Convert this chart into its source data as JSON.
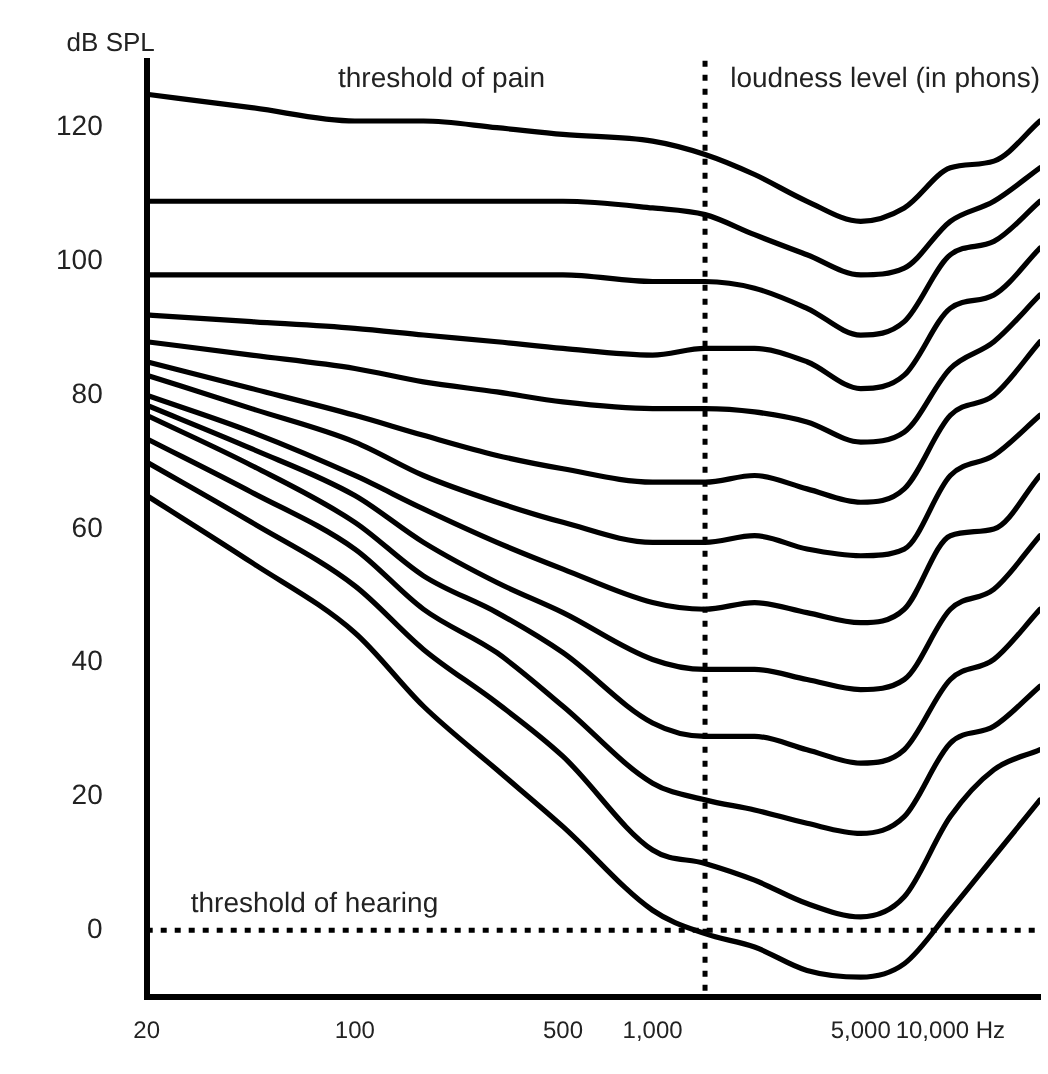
{
  "chart_data": {
    "type": "line",
    "ylabel": "dB SPL",
    "annotations": [
      "threshold of pain",
      "loudness level (in phons)"
    ],
    "x": [
      20,
      45,
      100,
      170,
      300,
      500,
      1000,
      1500,
      2200,
      3300,
      5000,
      7000,
      10000,
      14000,
      20000
    ],
    "series": [
      {
        "color": "#000000",
        "values": [
          125,
          123,
          121,
          121,
          120,
          119,
          118,
          116,
          113,
          109,
          106,
          108,
          114,
          115,
          121
        ]
      },
      {
        "color": "#000000",
        "values": [
          109,
          109,
          109,
          109,
          109,
          109,
          108,
          107,
          104,
          101,
          98,
          99,
          106,
          109,
          114
        ]
      },
      {
        "color": "#000000",
        "values": [
          98,
          98,
          98,
          98,
          98,
          98,
          97,
          97,
          96,
          93,
          89,
          91,
          101,
          103,
          109
        ]
      },
      {
        "color": "#000000",
        "values": [
          92,
          91,
          90,
          89,
          88,
          87,
          86,
          87,
          87,
          85,
          81,
          83,
          93,
          95,
          102
        ]
      },
      {
        "color": "#000000",
        "values": [
          88,
          86,
          84,
          82,
          80.5,
          79,
          78,
          78,
          77.5,
          76,
          73,
          74.5,
          84,
          88,
          95
        ]
      },
      {
        "color": "#000000",
        "values": [
          85,
          81,
          77,
          74,
          71,
          69,
          67,
          67,
          68,
          66,
          64,
          66,
          77,
          80,
          88
        ]
      },
      {
        "color": "#000000",
        "values": [
          83,
          78,
          73,
          68,
          64,
          61,
          58,
          58,
          59,
          57,
          56,
          57,
          68,
          71,
          77
        ]
      },
      {
        "color": "#000000",
        "values": [
          80,
          74.5,
          68,
          63,
          58,
          54,
          49,
          48,
          49,
          47.5,
          46,
          48,
          59,
          60,
          68
        ]
      },
      {
        "color": "#000000",
        "values": [
          78.5,
          72,
          65,
          58,
          52,
          47.5,
          40.5,
          39,
          39,
          37.5,
          36,
          37.5,
          48,
          51,
          59
        ]
      },
      {
        "color": "#000000",
        "values": [
          77,
          69.5,
          61,
          53,
          47.5,
          41.5,
          31,
          29,
          29,
          27,
          25,
          27,
          37.5,
          40.5,
          48
        ]
      },
      {
        "color": "#000000",
        "values": [
          73.5,
          65.5,
          57,
          48,
          41.5,
          33.5,
          22,
          19.5,
          18,
          16,
          14.5,
          17,
          28,
          30.5,
          36.5
        ]
      },
      {
        "color": "#000000",
        "values": [
          70,
          61,
          51.5,
          42,
          34,
          26,
          12,
          10,
          7.5,
          4,
          2,
          5,
          17,
          24,
          27
        ]
      },
      {
        "color": "#000000",
        "values": [
          65,
          55,
          44.5,
          33.5,
          24,
          15.5,
          3,
          -0.5,
          -2.5,
          -6,
          -7,
          -5,
          3,
          11,
          19.5
        ]
      }
    ],
    "log": "x",
    "xlim": [
      20,
      20000
    ],
    "xticks": [
      20,
      100,
      500,
      {
        "value": 1000,
        "label": "1,000"
      },
      {
        "value": 5000,
        "label": "5,000"
      },
      {
        "value": 10000,
        "label": "10,000 Hz"
      }
    ],
    "ylim": [
      -10,
      130
    ],
    "yticks": [
      0,
      20,
      40,
      60,
      80,
      100,
      120
    ],
    "ref_lines": [
      {
        "axis": "y",
        "value": 0,
        "label": "threshold of hearing",
        "line_style": "dotted"
      },
      {
        "axis": "x",
        "value": 1500,
        "line_style": "dotted"
      }
    ],
    "grid": false,
    "legend": false,
    "marker": "none",
    "line_style": "solid"
  }
}
